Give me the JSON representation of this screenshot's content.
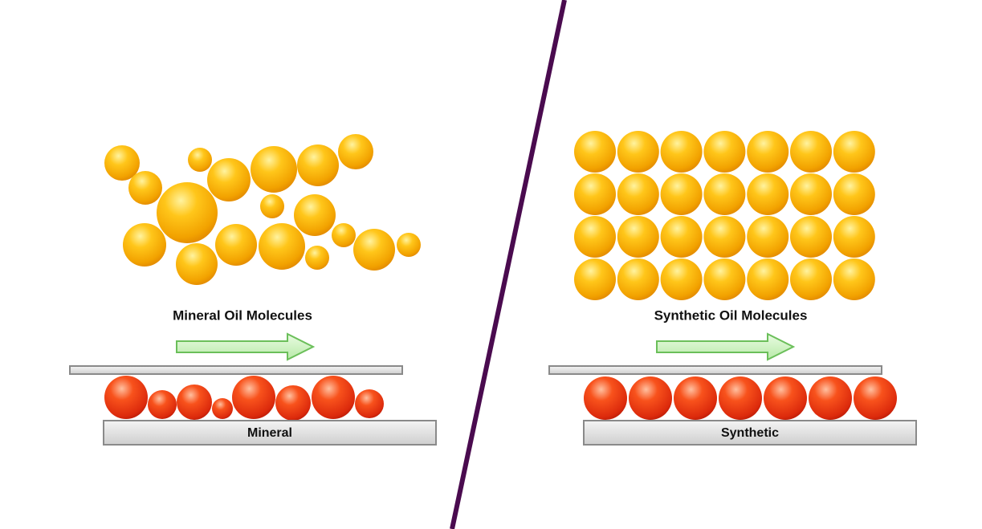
{
  "left": {
    "caption": "Mineral Oil Molecules",
    "label": "Mineral"
  },
  "right": {
    "caption": "Synthetic Oil Molecules",
    "label": "Synthetic"
  }
}
